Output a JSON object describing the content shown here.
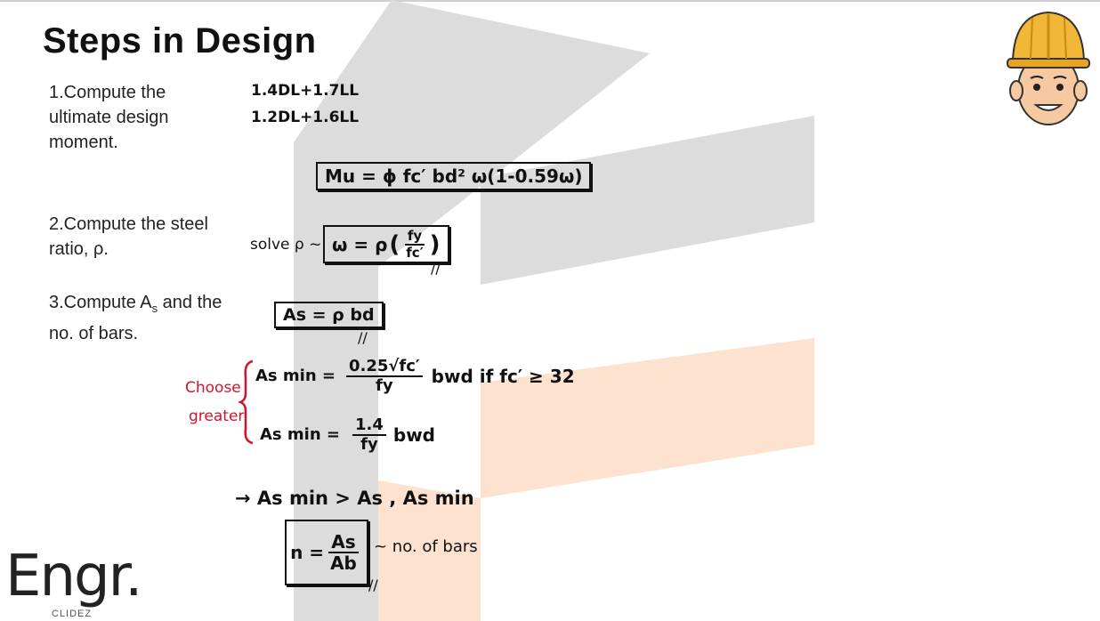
{
  "slide": {
    "title": "Steps in Design",
    "steps": [
      {
        "line1": "1.Compute  the",
        "line2": "ultimate design",
        "line3": "moment."
      },
      {
        "line1": "2.Compute the steel",
        "line2": "ratio, ρ."
      },
      {
        "line1_pre": "3.Compute A",
        "line1_sub": "s",
        "line1_post": " and the",
        "line2": "no. of bars."
      }
    ]
  },
  "handwriting": {
    "load_combo_1": "1.4DL+1.7LL",
    "load_combo_2": "1.2DL+1.6LL",
    "moment_formula": "Mu = ϕ fc′ bd² ω(1-0.59ω)",
    "solve_prefix": "solve ρ ~",
    "omega_lhs": "ω = ρ",
    "omega_num": "fy",
    "omega_den": "fc′",
    "as_formula": "As = ρ bd",
    "choose_1": "Choose",
    "choose_2": "greater",
    "asmin1_lhs": "As min =",
    "asmin1_num": "0.25√fc′",
    "asmin1_den": "fy",
    "asmin1_rhs": "bwd  if fc′ ≥ 32",
    "asmin2_lhs": "As min =",
    "asmin2_num": "1.4",
    "asmin2_den": "fy",
    "asmin2_rhs": "bwd",
    "compare": "→ As min > As ,  As min",
    "n_lhs": "n =",
    "n_num": "As",
    "n_den": "Ab",
    "n_note": "~ no. of bars",
    "tick": "//"
  },
  "logo": {
    "main": "Engr.",
    "sub": "CLIDEZ"
  },
  "colors": {
    "watermark_gray": "#dcdcdc",
    "watermark_orange": "#fde3cf",
    "accent_red": "#d2142a"
  },
  "icons": {
    "mascot": "engineer-with-hard-hat-icon"
  }
}
